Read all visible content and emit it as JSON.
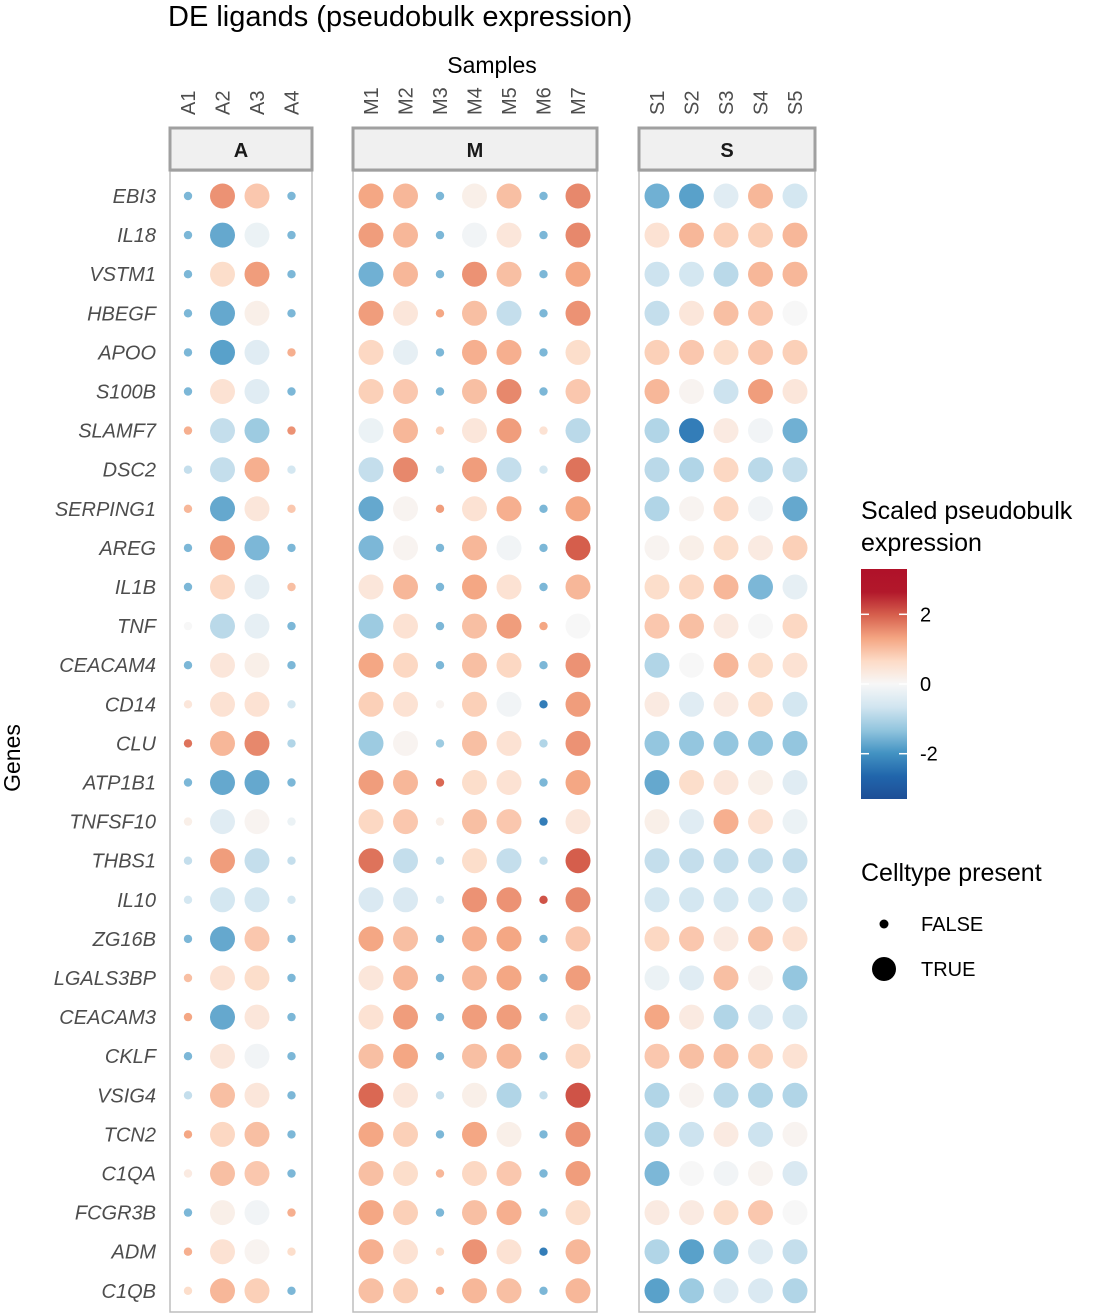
{
  "chart_data": {
    "type": "dotplot",
    "title": "DE ligands (pseudobulk expression)",
    "xlabel": "Samples",
    "ylabel": "Genes",
    "facets": [
      {
        "name": "A",
        "samples": [
          "A1",
          "A2",
          "A3",
          "A4"
        ]
      },
      {
        "name": "M",
        "samples": [
          "M1",
          "M2",
          "M3",
          "M4",
          "M5",
          "M6",
          "M7"
        ]
      },
      {
        "name": "S",
        "samples": [
          "S1",
          "S2",
          "S3",
          "S4",
          "S5"
        ]
      }
    ],
    "samples": [
      "A1",
      "A2",
      "A3",
      "A4",
      "M1",
      "M2",
      "M3",
      "M4",
      "M5",
      "M6",
      "M7",
      "S1",
      "S2",
      "S3",
      "S4",
      "S5"
    ],
    "genes": [
      "EBI3",
      "IL18",
      "VSTM1",
      "HBEGF",
      "APOO",
      "S100B",
      "SLAMF7",
      "DSC2",
      "SERPING1",
      "AREG",
      "IL1B",
      "TNF",
      "CEACAM4",
      "CD14",
      "CLU",
      "ATP1B1",
      "TNFSF10",
      "THBS1",
      "IL10",
      "ZG16B",
      "LGALS3BP",
      "CEACAM3",
      "CKLF",
      "VSIG4",
      "TCN2",
      "C1QA",
      "FCGR3B",
      "ADM",
      "C1QB"
    ],
    "values": [
      [
        -1.5,
        1.5,
        0.9,
        -1.5,
        1.3,
        1.1,
        -1.5,
        0.2,
        1.0,
        -1.5,
        1.6,
        -1.6,
        -1.8,
        -0.4,
        1.1,
        -0.6
      ],
      [
        -1.5,
        -1.7,
        -0.2,
        -1.5,
        1.4,
        1.1,
        -1.5,
        -0.1,
        0.4,
        -1.5,
        1.6,
        0.5,
        1.1,
        0.8,
        0.8,
        1.1
      ],
      [
        -1.5,
        0.6,
        1.4,
        -1.5,
        -1.6,
        1.1,
        -1.5,
        1.5,
        1.0,
        -1.5,
        1.3,
        -0.7,
        -0.6,
        -0.9,
        1.1,
        1.1
      ],
      [
        -1.5,
        -1.7,
        0.2,
        -1.5,
        1.4,
        0.4,
        1.3,
        1.0,
        -0.8,
        -1.5,
        1.5,
        -0.8,
        0.4,
        1.0,
        0.9,
        0.0
      ],
      [
        -1.5,
        -1.8,
        -0.4,
        1.2,
        0.7,
        -0.3,
        -1.5,
        1.2,
        1.2,
        -1.5,
        0.6,
        0.8,
        0.9,
        0.6,
        0.9,
        0.8
      ],
      [
        -1.5,
        0.5,
        -0.4,
        -1.5,
        0.8,
        0.9,
        -1.5,
        1.0,
        1.6,
        -1.5,
        0.9,
        1.1,
        0.1,
        -0.7,
        1.4,
        0.4
      ],
      [
        1.2,
        -0.8,
        -1.2,
        1.5,
        -0.2,
        1.1,
        0.8,
        0.4,
        1.4,
        0.5,
        -0.9,
        -1.0,
        -2.3,
        0.3,
        -0.1,
        -1.6
      ],
      [
        -0.8,
        -0.8,
        1.2,
        -0.6,
        -0.8,
        1.6,
        -0.8,
        1.4,
        -0.8,
        -0.6,
        1.8,
        -0.9,
        -1.0,
        0.7,
        -0.9,
        -0.8
      ],
      [
        1.1,
        -1.7,
        0.4,
        0.9,
        -1.7,
        0.1,
        1.4,
        0.5,
        1.2,
        -1.5,
        1.3,
        -1.0,
        0.1,
        0.7,
        -0.1,
        -1.7
      ],
      [
        -1.5,
        1.4,
        -1.5,
        -1.5,
        -1.5,
        0.1,
        -1.5,
        1.1,
        -0.1,
        -1.5,
        2.0,
        0.1,
        0.2,
        0.6,
        0.3,
        0.8
      ],
      [
        -1.5,
        0.7,
        -0.3,
        1.0,
        0.4,
        1.1,
        -1.5,
        1.3,
        0.5,
        -1.5,
        1.1,
        0.6,
        0.7,
        1.1,
        -1.5,
        -0.3
      ],
      [
        0.0,
        -0.9,
        -0.3,
        -1.5,
        -1.2,
        0.5,
        -1.5,
        1.0,
        1.4,
        1.3,
        0.0,
        0.9,
        1.0,
        0.3,
        0.0,
        0.7
      ],
      [
        -1.5,
        0.4,
        0.2,
        -1.5,
        1.3,
        0.7,
        -1.5,
        1.0,
        0.7,
        -1.5,
        1.5,
        -1.0,
        0.0,
        1.1,
        0.6,
        0.5
      ],
      [
        0.4,
        0.5,
        0.5,
        -0.6,
        0.8,
        0.5,
        0.1,
        0.8,
        -0.1,
        -2.3,
        1.4,
        0.3,
        -0.4,
        0.3,
        0.6,
        -0.6
      ],
      [
        1.8,
        1.1,
        1.6,
        -1.0,
        -1.2,
        0.1,
        -1.2,
        1.0,
        0.5,
        -1.0,
        1.5,
        -1.3,
        -1.3,
        -1.3,
        -1.3,
        -1.3
      ],
      [
        -1.5,
        -1.7,
        -1.7,
        -1.5,
        1.4,
        1.1,
        1.9,
        0.6,
        0.5,
        -1.5,
        1.3,
        -1.7,
        0.6,
        0.4,
        0.2,
        -0.4
      ],
      [
        0.2,
        -0.4,
        0.1,
        -0.2,
        0.7,
        0.9,
        0.2,
        1.0,
        0.9,
        -2.3,
        0.4,
        0.2,
        -0.4,
        1.2,
        0.5,
        -0.2
      ],
      [
        -0.8,
        1.4,
        -0.8,
        -0.8,
        1.8,
        -0.8,
        -0.8,
        0.6,
        -0.8,
        -0.8,
        2.0,
        -0.8,
        -0.8,
        -0.8,
        -0.8,
        -0.8
      ],
      [
        -0.6,
        -0.6,
        -0.6,
        -0.6,
        -0.5,
        -0.5,
        -0.5,
        1.5,
        1.5,
        2.1,
        1.6,
        -0.6,
        -0.6,
        -0.6,
        -0.6,
        -0.6
      ],
      [
        -1.5,
        -1.7,
        0.9,
        -1.5,
        1.3,
        1.0,
        -1.5,
        1.2,
        1.3,
        -1.5,
        0.9,
        0.7,
        0.9,
        0.3,
        1.0,
        0.5
      ],
      [
        1.0,
        0.5,
        0.6,
        -1.5,
        0.4,
        1.1,
        -1.5,
        1.1,
        1.3,
        -1.5,
        1.4,
        -0.2,
        -0.4,
        1.0,
        0.1,
        -1.3
      ],
      [
        1.3,
        -1.7,
        0.4,
        -1.5,
        0.5,
        1.4,
        -1.5,
        1.4,
        1.4,
        -1.5,
        0.5,
        1.3,
        0.3,
        -1.0,
        -0.5,
        -0.6
      ],
      [
        -1.5,
        0.4,
        -0.1,
        -1.5,
        1.0,
        1.3,
        -1.5,
        1.0,
        1.1,
        -1.5,
        0.7,
        0.9,
        1.0,
        1.0,
        0.8,
        0.5
      ],
      [
        -0.8,
        1.0,
        0.4,
        -1.5,
        1.9,
        0.4,
        -0.8,
        0.2,
        -1.0,
        -0.8,
        2.1,
        -1.0,
        0.1,
        -0.9,
        -1.0,
        -1.0
      ],
      [
        1.3,
        0.7,
        1.0,
        -1.5,
        1.3,
        0.8,
        -1.5,
        1.3,
        0.2,
        -1.5,
        1.5,
        -1.0,
        -0.7,
        0.3,
        -0.7,
        0.1
      ],
      [
        0.3,
        1.0,
        0.9,
        -1.5,
        1.0,
        0.6,
        1.1,
        0.7,
        0.9,
        -1.5,
        1.4,
        -1.5,
        0.0,
        -0.1,
        0.1,
        -0.5
      ],
      [
        -1.5,
        0.2,
        -0.1,
        1.2,
        1.3,
        0.8,
        -1.5,
        1.0,
        1.2,
        -1.5,
        0.6,
        0.3,
        0.3,
        0.6,
        0.9,
        0.0
      ],
      [
        1.2,
        0.5,
        0.1,
        0.6,
        1.2,
        0.5,
        0.6,
        1.5,
        0.5,
        -2.3,
        1.1,
        -1.0,
        -1.8,
        -1.4,
        -0.4,
        -0.8
      ],
      [
        0.6,
        1.1,
        0.8,
        -1.5,
        1.0,
        0.8,
        1.2,
        1.1,
        1.0,
        -1.5,
        1.1,
        -1.8,
        -1.2,
        -0.4,
        -0.5,
        -1.0
      ]
    ],
    "celltype_present": {
      "false_samples": {
        "A": [
          "A1",
          "A4"
        ],
        "M": [
          "M3",
          "M6"
        ],
        "S": []
      },
      "true_samples": {
        "A": [
          "A2",
          "A3"
        ],
        "M": [
          "M1",
          "M2",
          "M4",
          "M5",
          "M7"
        ],
        "S": [
          "S1",
          "S2",
          "S3",
          "S4",
          "S5"
        ]
      }
    },
    "color_scale": {
      "title": "Scaled pseudobulk expression",
      "title_lines": [
        "Scaled pseudobulk",
        "expression"
      ],
      "min": -3.3,
      "max": 3.3,
      "ticks": [
        2,
        0,
        -2
      ],
      "tick_labels": [
        "2",
        "0",
        "-2"
      ],
      "low_color": "#2166ac",
      "mid_color": "#f7f7f7",
      "high_color": "#b2182b",
      "stops": [
        "#1e4f96",
        "#2166ac",
        "#4393c3",
        "#92c5de",
        "#d1e5f0",
        "#f7f7f7",
        "#fddbc7",
        "#f4a582",
        "#d6604d",
        "#b2182b",
        "#b01129"
      ]
    },
    "size_legend": {
      "title": "Celltype present",
      "items": [
        {
          "label": "FALSE",
          "present": false
        },
        {
          "label": "TRUE",
          "present": true
        }
      ]
    },
    "legend_position": "right"
  }
}
